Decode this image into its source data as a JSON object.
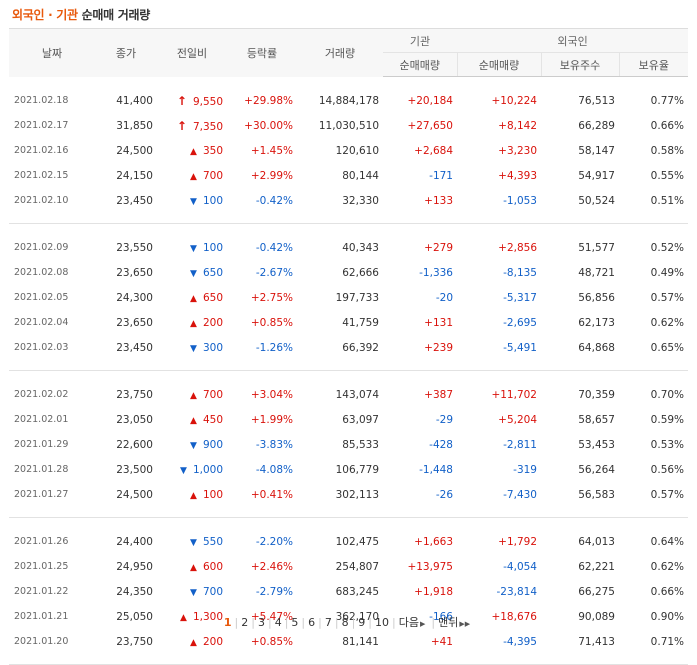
{
  "title": {
    "part1": "외국인",
    "sep": " · ",
    "part2": "기관",
    "rest": " 순매매 거래량"
  },
  "headers": {
    "date": "날짜",
    "close": "종가",
    "change": "전일비",
    "rate": "등락률",
    "volume": "거래량",
    "institution": "기관",
    "foreign": "외국인",
    "inst_net": "순매매량",
    "for_net": "순매매량",
    "holdings": "보유주수",
    "ratio": "보유율"
  },
  "groups": [
    [
      {
        "date": "2021.02.18",
        "close": "41,400",
        "dir": "upper",
        "change": "9,550",
        "rate": "+29.98%",
        "volume": "14,884,178",
        "inst": "+20,184",
        "for": "+10,224",
        "hold": "76,513",
        "ratio": "0.77%"
      },
      {
        "date": "2021.02.17",
        "close": "31,850",
        "dir": "upper",
        "change": "7,350",
        "rate": "+30.00%",
        "volume": "11,030,510",
        "inst": "+27,650",
        "for": "+8,142",
        "hold": "66,289",
        "ratio": "0.66%"
      },
      {
        "date": "2021.02.16",
        "close": "24,500",
        "dir": "up",
        "change": "350",
        "rate": "+1.45%",
        "volume": "120,610",
        "inst": "+2,684",
        "for": "+3,230",
        "hold": "58,147",
        "ratio": "0.58%"
      },
      {
        "date": "2021.02.15",
        "close": "24,150",
        "dir": "up",
        "change": "700",
        "rate": "+2.99%",
        "volume": "80,144",
        "inst": "-171",
        "for": "+4,393",
        "hold": "54,917",
        "ratio": "0.55%"
      },
      {
        "date": "2021.02.10",
        "close": "23,450",
        "dir": "down",
        "change": "100",
        "rate": "-0.42%",
        "volume": "32,330",
        "inst": "+133",
        "for": "-1,053",
        "hold": "50,524",
        "ratio": "0.51%"
      }
    ],
    [
      {
        "date": "2021.02.09",
        "close": "23,550",
        "dir": "down",
        "change": "100",
        "rate": "-0.42%",
        "volume": "40,343",
        "inst": "+279",
        "for": "+2,856",
        "hold": "51,577",
        "ratio": "0.52%"
      },
      {
        "date": "2021.02.08",
        "close": "23,650",
        "dir": "down",
        "change": "650",
        "rate": "-2.67%",
        "volume": "62,666",
        "inst": "-1,336",
        "for": "-8,135",
        "hold": "48,721",
        "ratio": "0.49%"
      },
      {
        "date": "2021.02.05",
        "close": "24,300",
        "dir": "up",
        "change": "650",
        "rate": "+2.75%",
        "volume": "197,733",
        "inst": "-20",
        "for": "-5,317",
        "hold": "56,856",
        "ratio": "0.57%"
      },
      {
        "date": "2021.02.04",
        "close": "23,650",
        "dir": "up",
        "change": "200",
        "rate": "+0.85%",
        "volume": "41,759",
        "inst": "+131",
        "for": "-2,695",
        "hold": "62,173",
        "ratio": "0.62%"
      },
      {
        "date": "2021.02.03",
        "close": "23,450",
        "dir": "down",
        "change": "300",
        "rate": "-1.26%",
        "volume": "66,392",
        "inst": "+239",
        "for": "-5,491",
        "hold": "64,868",
        "ratio": "0.65%"
      }
    ],
    [
      {
        "date": "2021.02.02",
        "close": "23,750",
        "dir": "up",
        "change": "700",
        "rate": "+3.04%",
        "volume": "143,074",
        "inst": "+387",
        "for": "+11,702",
        "hold": "70,359",
        "ratio": "0.70%"
      },
      {
        "date": "2021.02.01",
        "close": "23,050",
        "dir": "up",
        "change": "450",
        "rate": "+1.99%",
        "volume": "63,097",
        "inst": "-29",
        "for": "+5,204",
        "hold": "58,657",
        "ratio": "0.59%"
      },
      {
        "date": "2021.01.29",
        "close": "22,600",
        "dir": "down",
        "change": "900",
        "rate": "-3.83%",
        "volume": "85,533",
        "inst": "-428",
        "for": "-2,811",
        "hold": "53,453",
        "ratio": "0.53%"
      },
      {
        "date": "2021.01.28",
        "close": "23,500",
        "dir": "down",
        "change": "1,000",
        "rate": "-4.08%",
        "volume": "106,779",
        "inst": "-1,448",
        "for": "-319",
        "hold": "56,264",
        "ratio": "0.56%"
      },
      {
        "date": "2021.01.27",
        "close": "24,500",
        "dir": "up",
        "change": "100",
        "rate": "+0.41%",
        "volume": "302,113",
        "inst": "-26",
        "for": "-7,430",
        "hold": "56,583",
        "ratio": "0.57%"
      }
    ],
    [
      {
        "date": "2021.01.26",
        "close": "24,400",
        "dir": "down",
        "change": "550",
        "rate": "-2.20%",
        "volume": "102,475",
        "inst": "+1,663",
        "for": "+1,792",
        "hold": "64,013",
        "ratio": "0.64%"
      },
      {
        "date": "2021.01.25",
        "close": "24,950",
        "dir": "up",
        "change": "600",
        "rate": "+2.46%",
        "volume": "254,807",
        "inst": "+13,975",
        "for": "-4,054",
        "hold": "62,221",
        "ratio": "0.62%"
      },
      {
        "date": "2021.01.22",
        "close": "24,350",
        "dir": "down",
        "change": "700",
        "rate": "-2.79%",
        "volume": "683,245",
        "inst": "+1,918",
        "for": "-23,814",
        "hold": "66,275",
        "ratio": "0.66%"
      },
      {
        "date": "2021.01.21",
        "close": "25,050",
        "dir": "up",
        "change": "1,300",
        "rate": "+5.47%",
        "volume": "362,170",
        "inst": "-166",
        "for": "+18,676",
        "hold": "90,089",
        "ratio": "0.90%"
      },
      {
        "date": "2021.01.20",
        "close": "23,750",
        "dir": "up",
        "change": "200",
        "rate": "+0.85%",
        "volume": "81,141",
        "inst": "+41",
        "for": "-4,395",
        "hold": "71,413",
        "ratio": "0.71%"
      }
    ]
  ],
  "icons": {
    "upper": "upper-limit-arrow-icon",
    "up": "up-triangle-icon",
    "down": "down-triangle-icon"
  },
  "colors": {
    "up": "#d9120b",
    "down": "#1260c8",
    "accent": "#e8590c"
  },
  "pager": {
    "pages": [
      "1",
      "2",
      "3",
      "4",
      "5",
      "6",
      "7",
      "8",
      "9",
      "10"
    ],
    "current": "1",
    "next_label": "다음",
    "last_label": "맨뒤"
  }
}
